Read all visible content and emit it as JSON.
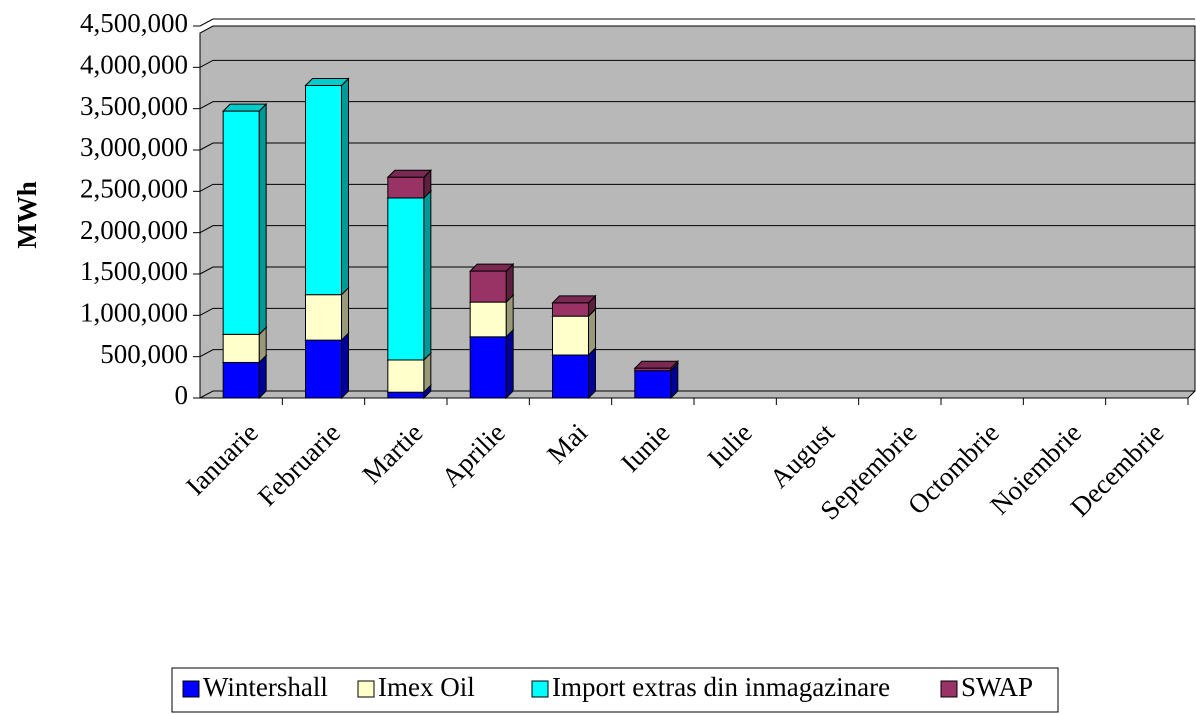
{
  "chart_data": {
    "type": "bar",
    "stacked": true,
    "y_label": "MWh",
    "categories": [
      "Ianuarie",
      "Februarie",
      "Martie",
      "Aprilie",
      "Mai",
      "Iunie",
      "Iulie",
      "August",
      "Septembrie",
      "Octombrie",
      "Noiembrie",
      "Decembrie"
    ],
    "series": [
      {
        "name": "Wintershall",
        "color": "#0000ff",
        "values": [
          430000,
          700000,
          70000,
          740000,
          520000,
          330000,
          0,
          0,
          0,
          0,
          0,
          0
        ]
      },
      {
        "name": "Imex Oil",
        "color": "#ffffcc",
        "values": [
          340000,
          550000,
          390000,
          420000,
          470000,
          0,
          0,
          0,
          0,
          0,
          0,
          0
        ]
      },
      {
        "name": "Import extras din inmagazinare",
        "color": "#00ffff",
        "values": [
          2700000,
          2530000,
          1960000,
          0,
          0,
          0,
          0,
          0,
          0,
          0,
          0,
          0
        ]
      },
      {
        "name": "SWAP",
        "color": "#993366",
        "values": [
          0,
          0,
          250000,
          375000,
          160000,
          30000,
          0,
          0,
          0,
          0,
          0,
          0
        ]
      }
    ],
    "ylim": [
      0,
      4500000
    ],
    "yticks": [
      0,
      {
        "value": 500000,
        "label": "500,000"
      },
      {
        "value": 1000000,
        "label": "1,000,000"
      },
      {
        "value": 1500000,
        "label": "1,500,000"
      },
      {
        "value": 2000000,
        "label": "2,000,000"
      },
      {
        "value": 2500000,
        "label": "2,500,000"
      },
      {
        "value": 3000000,
        "label": "3,000,000"
      },
      {
        "value": 3500000,
        "label": "3,500,000"
      },
      {
        "value": 4000000,
        "label": "4,000,000"
      },
      {
        "value": 4500000,
        "label": "4,500,000"
      }
    ],
    "grid": true,
    "legend": "bottom",
    "plot_background": "#b8b8b8"
  }
}
